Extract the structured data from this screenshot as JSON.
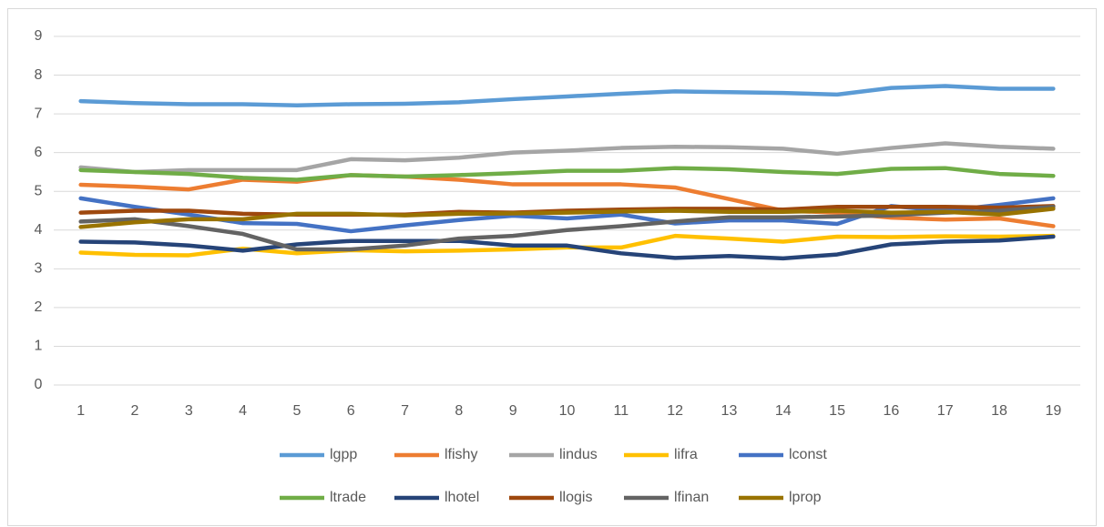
{
  "chart_data": {
    "type": "line",
    "categories": [
      "1",
      "2",
      "3",
      "4",
      "5",
      "6",
      "7",
      "8",
      "9",
      "10",
      "11",
      "12",
      "13",
      "14",
      "15",
      "16",
      "17",
      "18",
      "19"
    ],
    "ylim": [
      0,
      9
    ],
    "yticks": [
      0,
      1,
      2,
      3,
      4,
      5,
      6,
      7,
      8,
      9
    ],
    "grid": true,
    "legend": "bottom",
    "series": [
      {
        "name": "lgpp",
        "color": "#5b9bd5",
        "values": [
          7.33,
          7.28,
          7.25,
          7.25,
          7.22,
          7.25,
          7.26,
          7.3,
          7.38,
          7.45,
          7.52,
          7.58,
          7.56,
          7.54,
          7.5,
          7.67,
          7.72,
          7.65,
          7.65
        ]
      },
      {
        "name": "lfishy",
        "color": "#ed7d31",
        "values": [
          5.17,
          5.12,
          5.05,
          5.3,
          5.25,
          5.42,
          5.38,
          5.3,
          5.18,
          5.18,
          5.18,
          5.1,
          4.8,
          4.5,
          4.45,
          4.32,
          4.27,
          4.3,
          4.1
        ]
      },
      {
        "name": "lindus",
        "color": "#a5a5a5",
        "values": [
          5.62,
          5.5,
          5.55,
          5.55,
          5.55,
          5.83,
          5.8,
          5.87,
          6.0,
          6.05,
          6.12,
          6.15,
          6.14,
          6.1,
          5.97,
          6.12,
          6.24,
          6.15,
          6.1
        ]
      },
      {
        "name": "lifra",
        "color": "#ffc000",
        "values": [
          3.42,
          3.36,
          3.35,
          3.52,
          3.4,
          3.48,
          3.45,
          3.47,
          3.5,
          3.55,
          3.55,
          3.85,
          3.78,
          3.7,
          3.83,
          3.82,
          3.84,
          3.83,
          3.85
        ]
      },
      {
        "name": "lconst",
        "color": "#4472c4",
        "values": [
          4.82,
          4.6,
          4.4,
          4.18,
          4.16,
          3.97,
          4.12,
          4.26,
          4.37,
          4.3,
          4.4,
          4.17,
          4.25,
          4.25,
          4.16,
          4.62,
          4.5,
          4.65,
          4.82
        ]
      },
      {
        "name": "ltrade",
        "color": "#70ad47",
        "values": [
          5.55,
          5.5,
          5.45,
          5.35,
          5.3,
          5.42,
          5.38,
          5.42,
          5.47,
          5.53,
          5.53,
          5.6,
          5.57,
          5.5,
          5.45,
          5.58,
          5.6,
          5.45,
          5.4
        ]
      },
      {
        "name": "lhotel",
        "color": "#264478",
        "values": [
          3.7,
          3.68,
          3.6,
          3.47,
          3.63,
          3.72,
          3.72,
          3.72,
          3.6,
          3.6,
          3.4,
          3.28,
          3.33,
          3.27,
          3.37,
          3.63,
          3.7,
          3.73,
          3.83
        ]
      },
      {
        "name": "llogis",
        "color": "#9e480e",
        "values": [
          4.45,
          4.5,
          4.5,
          4.42,
          4.4,
          4.4,
          4.4,
          4.47,
          4.45,
          4.5,
          4.53,
          4.55,
          4.55,
          4.53,
          4.6,
          4.6,
          4.6,
          4.58,
          4.62
        ]
      },
      {
        "name": "lfinan",
        "color": "#636363",
        "values": [
          4.22,
          4.28,
          4.1,
          3.9,
          3.5,
          3.5,
          3.6,
          3.78,
          3.85,
          4.0,
          4.1,
          4.22,
          4.33,
          4.33,
          4.35,
          4.38,
          4.45,
          4.5,
          4.6
        ]
      },
      {
        "name": "lprop",
        "color": "#997300",
        "values": [
          4.08,
          4.2,
          4.28,
          4.28,
          4.42,
          4.42,
          4.38,
          4.42,
          4.43,
          4.45,
          4.48,
          4.5,
          4.47,
          4.47,
          4.5,
          4.45,
          4.47,
          4.4,
          4.55
        ]
      }
    ]
  }
}
